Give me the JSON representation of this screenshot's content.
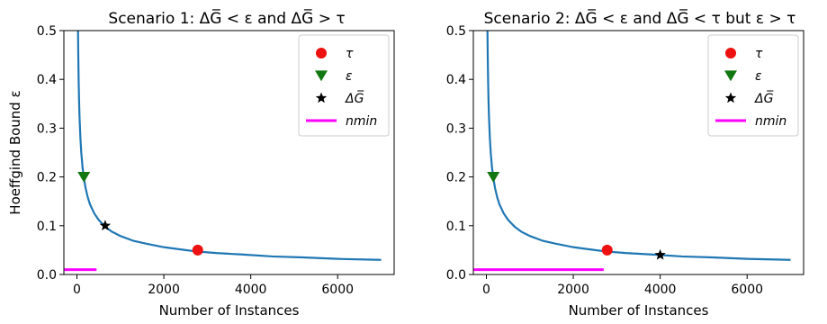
{
  "chart_data": [
    {
      "type": "line",
      "title": "Scenario 1: ΔG̅ < ε and ΔG̅ > τ",
      "xlabel": "Number of Instances",
      "ylabel": "Hoeffgind Bound ε",
      "xlim": [
        -300,
        7300
      ],
      "ylim": [
        0.0,
        0.5
      ],
      "xticks": [
        0,
        2000,
        4000,
        6000
      ],
      "xtick_labels": [
        "0",
        "2000",
        "4000",
        "6000"
      ],
      "yticks": [
        0.0,
        0.1,
        0.2,
        0.3,
        0.4,
        0.5
      ],
      "ytick_labels": [
        "0.0",
        "0.1",
        "0.2",
        "0.3",
        "0.4",
        "0.5"
      ],
      "grid": false,
      "legend_position": "top-right",
      "curve": {
        "x": [
          25,
          30,
          40,
          50,
          60,
          80,
          100,
          130,
          160,
          200,
          250,
          300,
          400,
          500,
          650,
          800,
          1000,
          1300,
          1600,
          2000,
          2500,
          2780,
          3200,
          3800,
          4500,
          5200,
          6000,
          7000
        ],
        "y": [
          0.5,
          0.456,
          0.395,
          0.354,
          0.323,
          0.28,
          0.25,
          0.219,
          0.198,
          0.177,
          0.158,
          0.144,
          0.125,
          0.112,
          0.098,
          0.088,
          0.079,
          0.069,
          0.063,
          0.056,
          0.05,
          0.047,
          0.044,
          0.041,
          0.037,
          0.035,
          0.032,
          0.03
        ],
        "color": "#1f77b4"
      },
      "legend": [
        {
          "label": "τ",
          "marker": "circle",
          "color": "#ee1111"
        },
        {
          "label": "ε",
          "marker": "triangle-down",
          "color": "#117711"
        },
        {
          "label": "ΔG̅",
          "marker": "star",
          "color": "#000000"
        },
        {
          "label": "nmin",
          "marker": "line",
          "color": "#ff00ff"
        }
      ],
      "points": {
        "tau": {
          "x": 2780,
          "y": 0.05
        },
        "epsilon": {
          "x": 160,
          "y": 0.2
        },
        "delta_g": {
          "x": 650,
          "y": 0.1
        }
      },
      "nmin": {
        "x_start": -300,
        "x_end": 450,
        "y": 0.01
      }
    },
    {
      "type": "line",
      "title": "Scenario 2: ΔG̅ < ε and ΔG̅ < τ but ε > τ",
      "xlabel": "Number of Instances",
      "ylabel": "",
      "xlim": [
        -300,
        7300
      ],
      "ylim": [
        0.0,
        0.5
      ],
      "xticks": [
        0,
        2000,
        4000,
        6000
      ],
      "xtick_labels": [
        "0",
        "2000",
        "4000",
        "6000"
      ],
      "yticks": [
        0.0,
        0.1,
        0.2,
        0.3,
        0.4,
        0.5
      ],
      "ytick_labels": [
        "0.0",
        "0.1",
        "0.2",
        "0.3",
        "0.4",
        "0.5"
      ],
      "grid": false,
      "legend_position": "top-right",
      "curve": {
        "x": [
          25,
          30,
          40,
          50,
          60,
          80,
          100,
          130,
          160,
          200,
          250,
          300,
          400,
          500,
          650,
          800,
          1000,
          1300,
          1600,
          2000,
          2500,
          2780,
          3200,
          3800,
          4500,
          5200,
          6000,
          7000
        ],
        "y": [
          0.5,
          0.456,
          0.395,
          0.354,
          0.323,
          0.28,
          0.25,
          0.219,
          0.198,
          0.177,
          0.158,
          0.144,
          0.125,
          0.112,
          0.098,
          0.088,
          0.079,
          0.069,
          0.063,
          0.056,
          0.05,
          0.047,
          0.044,
          0.041,
          0.037,
          0.035,
          0.032,
          0.03
        ],
        "color": "#1f77b4"
      },
      "legend": [
        {
          "label": "τ",
          "marker": "circle",
          "color": "#ee1111"
        },
        {
          "label": "ε",
          "marker": "triangle-down",
          "color": "#117711"
        },
        {
          "label": "ΔG̅",
          "marker": "star",
          "color": "#000000"
        },
        {
          "label": "nmin",
          "marker": "line",
          "color": "#ff00ff"
        }
      ],
      "points": {
        "tau": {
          "x": 2780,
          "y": 0.05
        },
        "epsilon": {
          "x": 160,
          "y": 0.2
        },
        "delta_g": {
          "x": 4000,
          "y": 0.04
        }
      },
      "nmin": {
        "x_start": -300,
        "x_end": 2700,
        "y": 0.01
      }
    }
  ]
}
